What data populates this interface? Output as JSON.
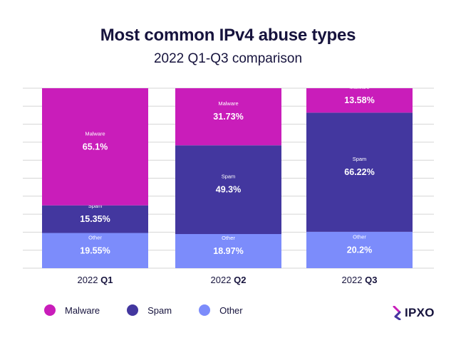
{
  "title": "Most common IPv4 abuse types",
  "subtitle": "2022 Q1-Q3 comparison",
  "colors": {
    "malware": "#c91dba",
    "spam": "#43379f",
    "other": "#7c8cfb",
    "grid": "#d5d5d5",
    "text_dark": "#16133d"
  },
  "legend": [
    {
      "label": "Malware",
      "color": "#c91dba"
    },
    {
      "label": "Spam",
      "color": "#43379f"
    },
    {
      "label": "Other",
      "color": "#7c8cfb"
    }
  ],
  "logo": {
    "text": "IPXO",
    "icon": "ipxo-logo-icon"
  },
  "chart_data": {
    "type": "bar",
    "stacked": true,
    "normalized": true,
    "categories": [
      {
        "prefix": "2022",
        "bold": "Q1"
      },
      {
        "prefix": "2022",
        "bold": "Q2"
      },
      {
        "prefix": "2022",
        "bold": "Q3"
      }
    ],
    "series": [
      {
        "name": "Other",
        "color": "#7c8cfb",
        "values": [
          19.55,
          18.97,
          20.2
        ],
        "labels": [
          "19.55%",
          "18.97%",
          "20.2%"
        ]
      },
      {
        "name": "Spam",
        "color": "#43379f",
        "values": [
          15.35,
          49.3,
          66.22
        ],
        "labels": [
          "15.35%",
          "49.3%",
          "66.22%"
        ]
      },
      {
        "name": "Malware",
        "color": "#c91dba",
        "values": [
          65.1,
          31.73,
          13.58
        ],
        "labels": [
          "65.1%",
          "31.73%",
          "13.58%"
        ]
      }
    ],
    "ylim": [
      0,
      100
    ],
    "grid": true,
    "legend_position": "bottom-left"
  }
}
